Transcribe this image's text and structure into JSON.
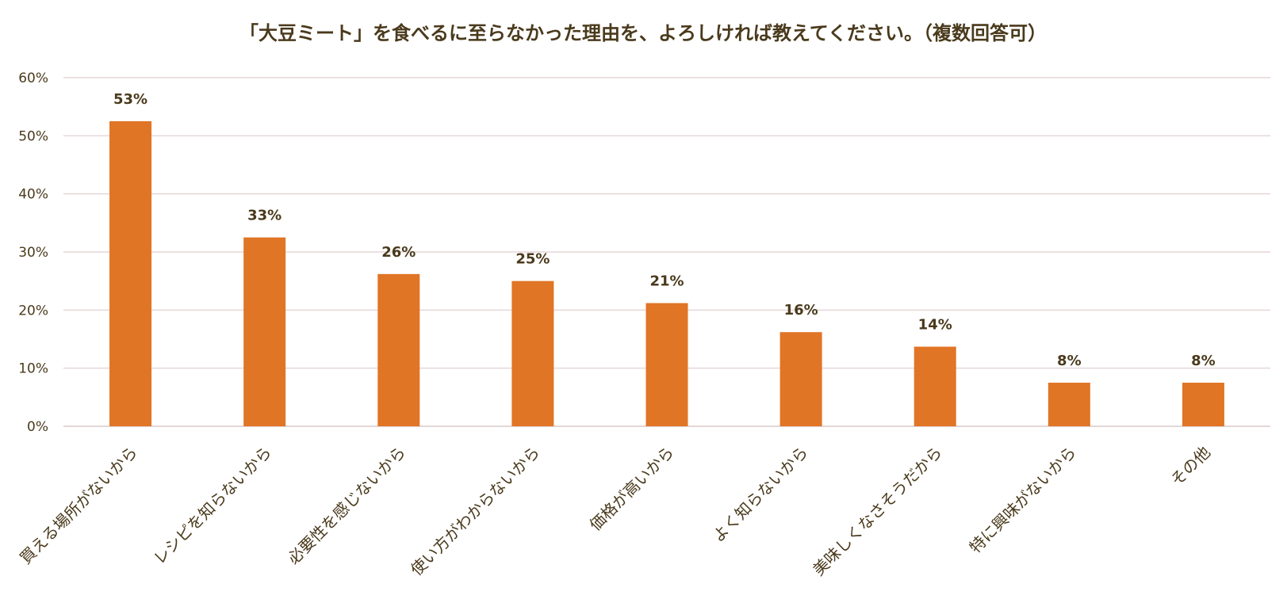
{
  "chart_data": {
    "type": "bar",
    "title": "「大豆ミート」を食べるに至らなかった理由を、よろしければ教えてください。（複数回答可）",
    "categories": [
      "買える場所がないから",
      "レシピを知らないから",
      "必要性を感じないから",
      "使い方がわからないから",
      "価格が高いから",
      "よく知らないから",
      "美味しくなさそうだから",
      "特に興味がないから",
      "その他"
    ],
    "values": [
      52.5,
      32.5,
      26.2,
      25.0,
      21.2,
      16.2,
      13.7,
      7.5,
      7.5
    ],
    "data_labels": [
      "53%",
      "33%",
      "26%",
      "25%",
      "21%",
      "16%",
      "14%",
      "8%",
      "8%"
    ],
    "ylim": [
      0,
      60
    ],
    "yticks": [
      0,
      10,
      20,
      30,
      40,
      50,
      60
    ],
    "ytick_labels": [
      "0%",
      "10%",
      "20%",
      "30%",
      "40%",
      "50%",
      "60%"
    ],
    "grid": true,
    "legend": "none",
    "bar_color": "#e07526",
    "text_color": "#4a3a1c",
    "grid_color": "#e6d6d6"
  }
}
